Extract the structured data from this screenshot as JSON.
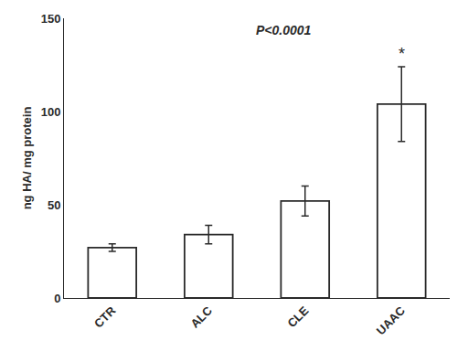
{
  "chart_data": {
    "type": "bar",
    "categories": [
      "CTR",
      "ALC",
      "CLE",
      "UAAC"
    ],
    "values": [
      27.0,
      34.0,
      52.0,
      104.0
    ],
    "errors": [
      2.0,
      5.0,
      8.0,
      20.0
    ],
    "color": "#ffffff",
    "ylabel": "ng HA/ mg protein",
    "ylim": [
      0,
      150
    ],
    "yticks": [
      0,
      50,
      100,
      150
    ],
    "grid": false,
    "annotations": [
      {
        "text": "*",
        "category": "UAAC"
      },
      {
        "text": "P<0.0001"
      }
    ]
  }
}
